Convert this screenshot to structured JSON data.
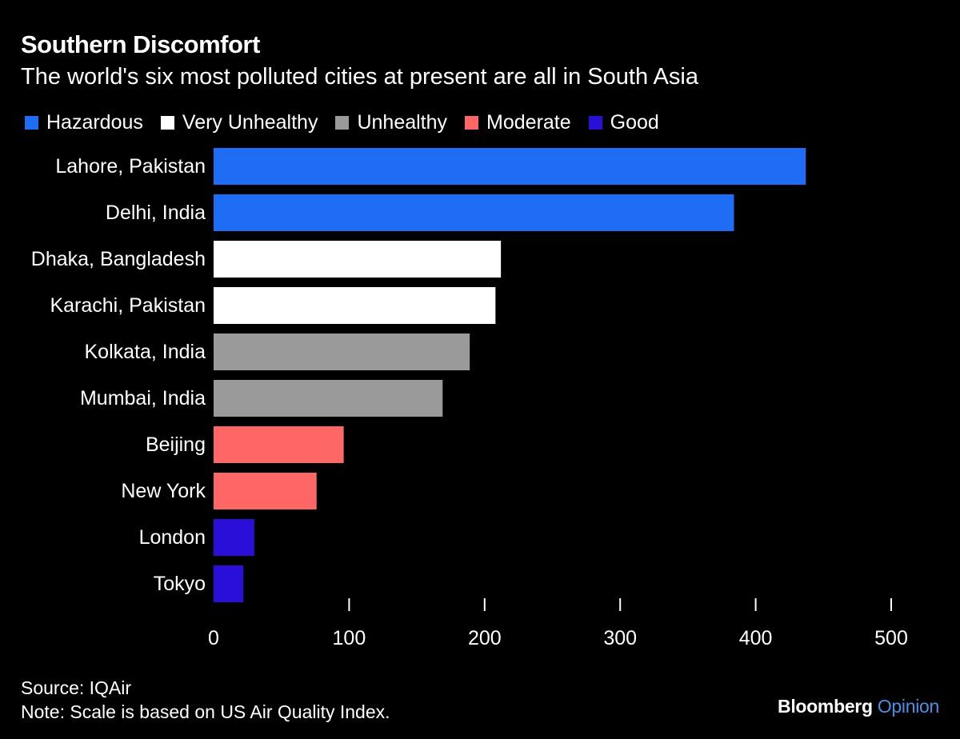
{
  "header": {
    "title": "Southern Discomfort",
    "subtitle": "The world's six most polluted cities at present are all in South Asia"
  },
  "legend": [
    {
      "label": "Hazardous",
      "color": "#1f6cf5"
    },
    {
      "label": "Very Unhealthy",
      "color": "#ffffff"
    },
    {
      "label": "Unhealthy",
      "color": "#9a9a9a"
    },
    {
      "label": "Moderate",
      "color": "#ff6666"
    },
    {
      "label": "Good",
      "color": "#2a0fd8"
    }
  ],
  "chart_data": {
    "type": "bar",
    "orientation": "horizontal",
    "categories": [
      "Lahore, Pakistan",
      "Delhi, India",
      "Dhaka, Bangladesh",
      "Karachi, Pakistan",
      "Kolkata, India",
      "Mumbai, India",
      "Beijing",
      "New York",
      "London",
      "Tokyo"
    ],
    "values": [
      437,
      384,
      212,
      208,
      189,
      169,
      96,
      76,
      30,
      22
    ],
    "bar_categories": [
      "Hazardous",
      "Hazardous",
      "Very Unhealthy",
      "Very Unhealthy",
      "Unhealthy",
      "Unhealthy",
      "Moderate",
      "Moderate",
      "Good",
      "Good"
    ],
    "xlim": [
      0,
      500
    ],
    "xticks": [
      0,
      100,
      200,
      300,
      400,
      500
    ],
    "grid": false,
    "legend_position": "top-left"
  },
  "footer": {
    "source": "Source: IQAir",
    "note": "Note: Scale is based on US Air Quality Index.",
    "brand_main": "Bloomberg",
    "brand_accent": "Opinion"
  }
}
